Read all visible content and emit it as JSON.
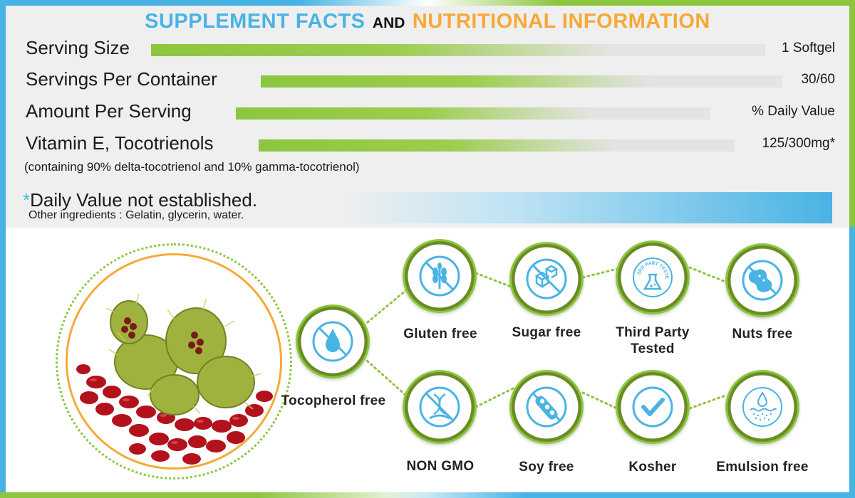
{
  "title": {
    "part1": "SUPPLEMENT FACTS",
    "part2": "AND",
    "part3": "NUTRITIONAL INFORMATION"
  },
  "facts": [
    {
      "label": "Serving Size",
      "value": "1 Softgel"
    },
    {
      "label": "Servings Per Container",
      "value": "30/60"
    },
    {
      "label": "Amount Per Serving",
      "value": "% Daily Value"
    },
    {
      "label": "Vitamin E, Tocotrienols",
      "value": "125/300mg*"
    }
  ],
  "note": "(containing 90% delta-tocotrienol and 10% gamma-tocotrienol)",
  "daily_value": {
    "star": "*",
    "text": "Daily Value not established."
  },
  "other_ingredients": "Other ingredients : Gelatin, glycerin, water.",
  "badges": [
    {
      "label": "Tocopherol free",
      "icon": "water-drop-icon"
    },
    {
      "label": "Gluten free",
      "icon": "wheat-icon"
    },
    {
      "label": "Sugar free",
      "icon": "sugar-cubes-icon"
    },
    {
      "label": "Third Party Tested",
      "icon": "flask-icon",
      "ring_text": "3RD PART TESTED"
    },
    {
      "label": "Nuts free",
      "icon": "peanut-icon"
    },
    {
      "label": "NON GMO",
      "icon": "dna-icon"
    },
    {
      "label": "Soy free",
      "icon": "soybean-icon"
    },
    {
      "label": "Kosher",
      "icon": "checkmark-icon"
    },
    {
      "label": "Emulsion free",
      "icon": "emulsion-drop-icon"
    }
  ],
  "colors": {
    "blue": "#49b3e4",
    "green": "#8cc63f",
    "orange": "#f7a836",
    "dark_green": "#6a8b24"
  }
}
